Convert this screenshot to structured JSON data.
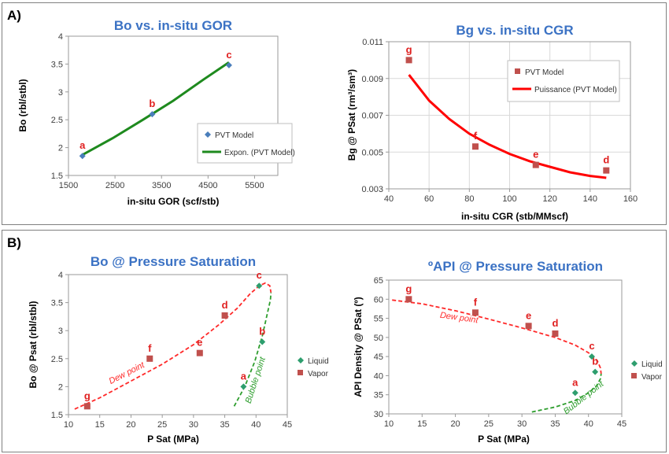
{
  "panels": [
    {
      "label": "A)"
    },
    {
      "label": "B)"
    }
  ],
  "chart_data": [
    {
      "type": "scatter",
      "title": "Bo vs. in-situ GOR",
      "xlabel": "in-situ GOR (scf/stb)",
      "ylabel": "Bo (rbl/stbl)",
      "xlim": [
        1500,
        6000
      ],
      "ylim": [
        1.5,
        4
      ],
      "xticks": [
        1500,
        2500,
        3500,
        4500,
        5500
      ],
      "yticks": [
        1.5,
        2,
        2.5,
        3,
        3.5,
        4
      ],
      "grid": false,
      "legend_position": "bottom-right",
      "series": [
        {
          "name": "PVT Model",
          "kind": "point",
          "marker": "diamond",
          "color": "#4a7ebb",
          "x": [
            1800,
            3300,
            4950
          ],
          "y": [
            1.85,
            2.6,
            3.48
          ],
          "labels": [
            "a",
            "b",
            "c"
          ]
        },
        {
          "name": "Expon. (PVT Model)",
          "kind": "line",
          "color": "#1e8a1e",
          "x": [
            1800,
            2450,
            3100,
            3750,
            4400,
            4950
          ],
          "y": [
            1.87,
            2.17,
            2.5,
            2.84,
            3.22,
            3.53
          ]
        }
      ]
    },
    {
      "type": "scatter",
      "title": "Bg vs. in-situ CGR",
      "xlabel": "in-situ CGR (stb/MMscf)",
      "ylabel": "Bg @ PSat (rm³/sm³)",
      "xlim": [
        40,
        160
      ],
      "ylim": [
        0.003,
        0.011
      ],
      "xticks": [
        40,
        60,
        80,
        100,
        120,
        140,
        160
      ],
      "yticks": [
        "0.003",
        "0.005",
        "0.007",
        "0.009",
        "0.011"
      ],
      "grid": true,
      "legend_position": "top-right",
      "series": [
        {
          "name": "PVT Model",
          "kind": "point",
          "marker": "square",
          "color": "#c0504d",
          "x": [
            50,
            83,
            113,
            148
          ],
          "y": [
            0.01,
            0.0053,
            0.0043,
            0.004
          ],
          "labels": [
            "g",
            "f",
            "e",
            "d"
          ]
        },
        {
          "name": "Puissance (PVT Model)",
          "kind": "line",
          "color": "#ff0000",
          "x": [
            50,
            60,
            70,
            80,
            90,
            100,
            110,
            120,
            130,
            140,
            148
          ],
          "y": [
            0.0092,
            0.0078,
            0.0068,
            0.006,
            0.0054,
            0.0049,
            0.0045,
            0.0042,
            0.0039,
            0.0037,
            0.0036
          ]
        }
      ]
    },
    {
      "type": "scatter",
      "title": "Bo @ Pressure Saturation",
      "xlabel": "P Sat (MPa)",
      "ylabel": "Bo @ Psat (rbl/stbl)",
      "xlim": [
        10,
        45
      ],
      "ylim": [
        1.5,
        4
      ],
      "xticks": [
        10,
        15,
        20,
        25,
        30,
        35,
        40,
        45
      ],
      "yticks": [
        1.5,
        2,
        2.5,
        3,
        3.5,
        4
      ],
      "grid": false,
      "legend_position": "right",
      "annotations": [
        {
          "text": "Dew point",
          "x": 19.5,
          "y": 2.2,
          "angle": -27,
          "color": "#ff2a2a"
        },
        {
          "text": "Bubble point",
          "x": 40.3,
          "y": 2.1,
          "angle": -72,
          "color": "#2e9e2e"
        }
      ],
      "series": [
        {
          "name": "Liquid",
          "kind": "point",
          "marker": "diamond",
          "color": "#2e9e6e",
          "x": [
            38,
            41,
            40.5
          ],
          "y": [
            2,
            2.8,
            3.8
          ],
          "labels": [
            "a",
            "b",
            "c"
          ]
        },
        {
          "name": "Vapor",
          "kind": "point",
          "marker": "square",
          "color": "#c0504d",
          "x": [
            35,
            31,
            23,
            13
          ],
          "y": [
            3.27,
            2.6,
            2.5,
            1.65
          ],
          "labels": [
            "d",
            "e",
            "f",
            "g"
          ]
        },
        {
          "name": "",
          "kind": "dashed",
          "color": "#ff2a2a",
          "x": [
            11,
            15,
            20,
            25,
            30,
            34,
            37,
            39,
            40.5,
            41.5,
            42.2,
            42.4
          ],
          "y": [
            1.6,
            1.8,
            2.1,
            2.4,
            2.75,
            3.1,
            3.4,
            3.65,
            3.8,
            3.85,
            3.8,
            3.68
          ]
        },
        {
          "name": "",
          "kind": "dashed",
          "color": "#2e9e2e",
          "x": [
            36.5,
            38.2,
            39.8,
            41,
            41.8,
            42.3,
            42.4
          ],
          "y": [
            1.65,
            2.0,
            2.45,
            2.9,
            3.3,
            3.55,
            3.68
          ]
        }
      ]
    },
    {
      "type": "scatter",
      "title": "ºAPI @ Pressure Saturation",
      "xlabel": "P Sat (MPa)",
      "ylabel": "API Density @ PSat (º)",
      "xlim": [
        10,
        45
      ],
      "ylim": [
        30,
        65
      ],
      "xticks": [
        10,
        15,
        20,
        25,
        30,
        35,
        40,
        45
      ],
      "yticks": [
        30,
        35,
        40,
        45,
        50,
        55,
        60,
        65
      ],
      "grid": false,
      "legend_position": "right",
      "annotations": [
        {
          "text": "Dew point",
          "x": 20.5,
          "y": 54.5,
          "angle": 8,
          "color": "#ff2a2a"
        },
        {
          "text": "Bubble point",
          "x": 39.5,
          "y": 33.7,
          "angle": -38,
          "color": "#2e9e2e"
        }
      ],
      "series": [
        {
          "name": "Liquid",
          "kind": "point",
          "marker": "diamond",
          "color": "#2e9e6e",
          "x": [
            38,
            41,
            40.5
          ],
          "y": [
            35.5,
            41,
            45
          ],
          "labels": [
            "a",
            "b",
            "c"
          ]
        },
        {
          "name": "Vapor",
          "kind": "point",
          "marker": "square",
          "color": "#c0504d",
          "x": [
            35,
            31,
            23,
            13
          ],
          "y": [
            51,
            53,
            56.5,
            60
          ],
          "labels": [
            "d",
            "e",
            "f",
            "g"
          ]
        },
        {
          "name": "",
          "kind": "dashed",
          "color": "#ff2a2a",
          "x": [
            10.5,
            15,
            20,
            25,
            30,
            35,
            38,
            40,
            41.3,
            41.8,
            41.9
          ],
          "y": [
            59.8,
            58.8,
            57,
            54.8,
            52.5,
            50,
            48,
            46,
            44,
            42,
            40.5
          ]
        },
        {
          "name": "",
          "kind": "dashed",
          "color": "#2e9e2e",
          "x": [
            31.5,
            35,
            38,
            40,
            41.2,
            41.8,
            41.9
          ],
          "y": [
            30.5,
            31.8,
            33.5,
            35.5,
            37.3,
            39.2,
            40.5
          ]
        }
      ]
    }
  ]
}
